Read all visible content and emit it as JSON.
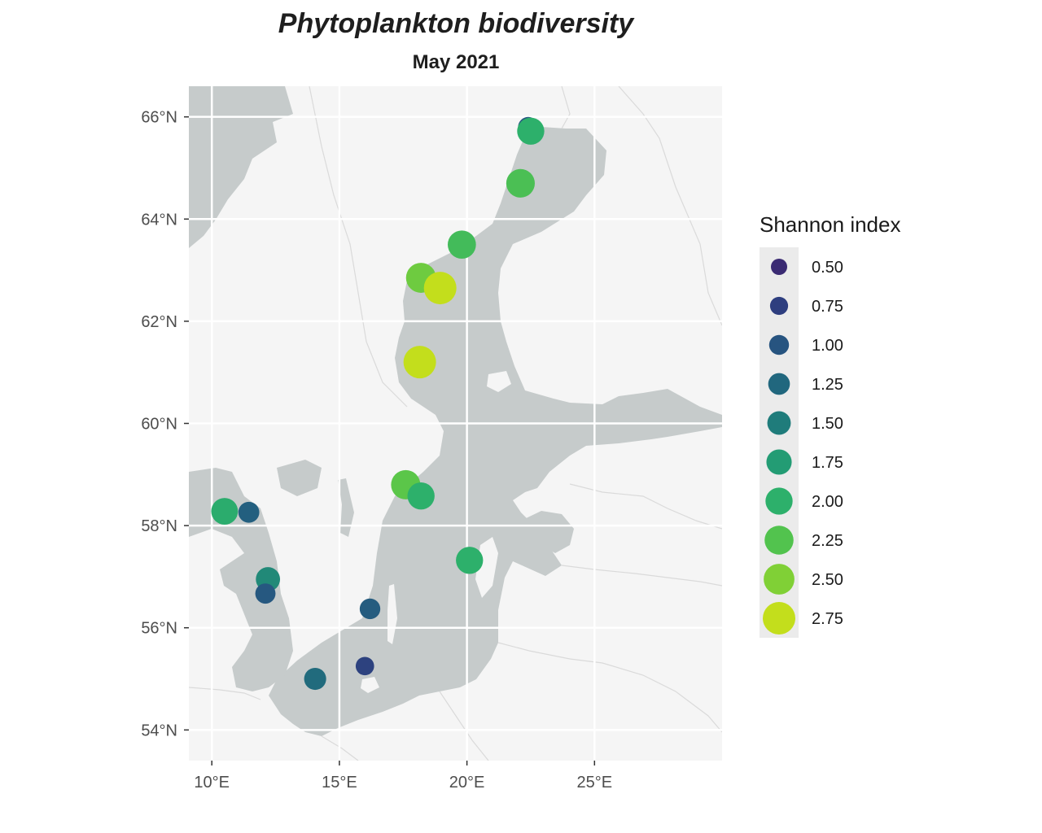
{
  "title": "Phytoplankton biodiversity",
  "subtitle": "May 2021",
  "colors": {
    "panel_background": "#f5f5f5",
    "sea": "#c6cbcb",
    "gridline": "#ffffff",
    "border": "#dadada",
    "legend_key_background": "#ebebeb"
  },
  "chart_data": {
    "type": "scatter",
    "projection": "map (longitude / latitude)",
    "xlim": [
      9.1,
      30.0
    ],
    "ylim": [
      53.4,
      66.6
    ],
    "x_ticks": [
      10,
      15,
      20,
      25
    ],
    "y_ticks": [
      54,
      56,
      58,
      60,
      62,
      64,
      66
    ],
    "x_tick_labels": [
      "10°E",
      "15°E",
      "20°E",
      "25°E"
    ],
    "y_tick_labels": [
      "54°N",
      "56°N",
      "58°N",
      "60°N",
      "62°N",
      "64°N",
      "66°N"
    ],
    "grid": true,
    "legend": {
      "title": "Shannon index",
      "placement": "right",
      "breaks": [
        "0.50",
        "0.75",
        "1.00",
        "1.25",
        "1.50",
        "1.75",
        "2.00",
        "2.25",
        "2.50",
        "2.75"
      ],
      "colors": [
        "#3b2b73",
        "#2e3e7f",
        "#275480",
        "#21677e",
        "#1f7c7b",
        "#239c74",
        "#2db06b",
        "#52c34e",
        "#80d036",
        "#c3de1c"
      ]
    },
    "points": [
      {
        "lon": 22.4,
        "lat": 65.8,
        "shannon": 1.05
      },
      {
        "lon": 22.5,
        "lat": 65.72,
        "shannon": 2.0
      },
      {
        "lon": 22.1,
        "lat": 64.7,
        "shannon": 2.2
      },
      {
        "lon": 19.8,
        "lat": 63.5,
        "shannon": 2.15
      },
      {
        "lon": 18.2,
        "lat": 62.85,
        "shannon": 2.4
      },
      {
        "lon": 18.95,
        "lat": 62.65,
        "shannon": 2.8
      },
      {
        "lon": 18.15,
        "lat": 61.2,
        "shannon": 2.75
      },
      {
        "lon": 17.6,
        "lat": 58.8,
        "shannon": 2.3
      },
      {
        "lon": 18.2,
        "lat": 58.58,
        "shannon": 2.0
      },
      {
        "lon": 20.1,
        "lat": 57.32,
        "shannon": 2.0
      },
      {
        "lon": 10.5,
        "lat": 58.28,
        "shannon": 1.95
      },
      {
        "lon": 11.45,
        "lat": 58.26,
        "shannon": 1.15
      },
      {
        "lon": 12.2,
        "lat": 56.95,
        "shannon": 1.6
      },
      {
        "lon": 12.1,
        "lat": 56.67,
        "shannon": 1.05
      },
      {
        "lon": 16.2,
        "lat": 56.37,
        "shannon": 1.1
      },
      {
        "lon": 16.0,
        "lat": 55.25,
        "shannon": 0.8
      },
      {
        "lon": 14.05,
        "lat": 55.0,
        "shannon": 1.3
      }
    ]
  }
}
